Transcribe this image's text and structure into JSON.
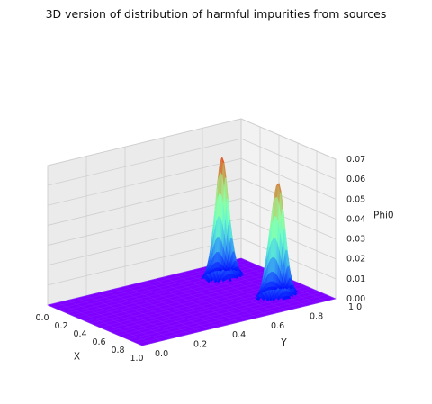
{
  "chart_data": {
    "type": "surface3d",
    "title": "3D version of distribution of harmful impurities from sources",
    "xlabel": "X",
    "ylabel": "Y",
    "zlabel": "Phi0",
    "xlim": [
      0.0,
      1.0
    ],
    "ylim": [
      0.0,
      1.0
    ],
    "zlim": [
      0.0,
      0.07
    ],
    "x_ticks": [
      "0.0",
      "0.2",
      "0.4",
      "0.6",
      "0.8",
      "1.0"
    ],
    "y_ticks": [
      "0.0",
      "0.2",
      "0.4",
      "0.6",
      "0.8",
      "1.0"
    ],
    "z_ticks": [
      "0.00",
      "0.01",
      "0.02",
      "0.03",
      "0.04",
      "0.05",
      "0.06",
      "0.07"
    ],
    "colormap": "rainbow",
    "base_color": "#7f00ff",
    "sources": [
      {
        "x": 0.25,
        "y": 0.78,
        "peak": 0.063
      },
      {
        "x": 0.75,
        "y": 0.82,
        "peak": 0.066
      }
    ],
    "grid": true
  }
}
